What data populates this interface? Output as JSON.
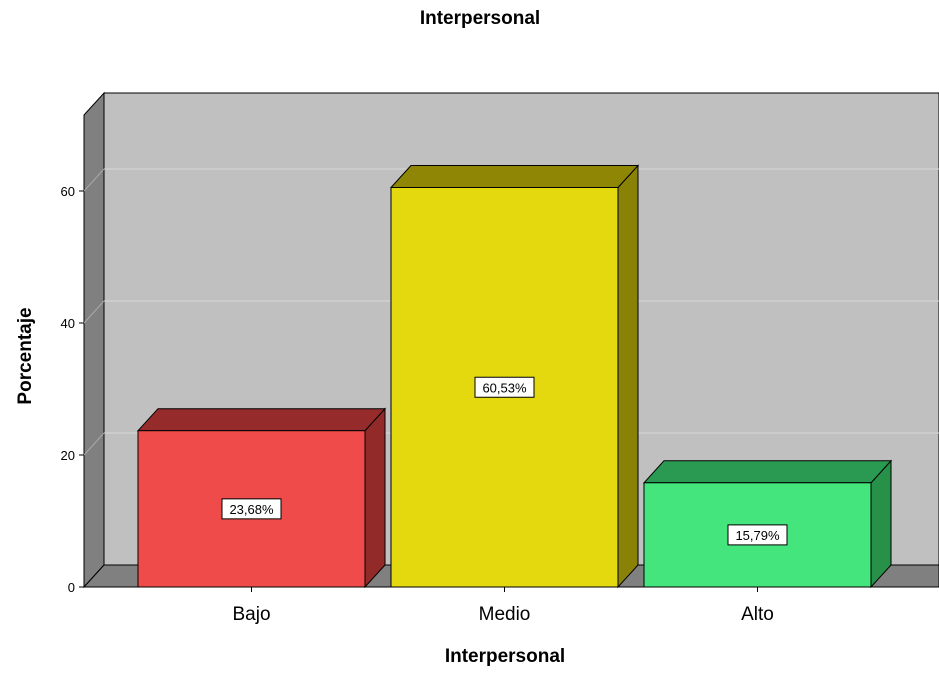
{
  "chart_data": {
    "type": "bar",
    "title": "Interpersonal",
    "xlabel": "Interpersonal",
    "ylabel": "Porcentaje",
    "categories": [
      "Bajo",
      "Medio",
      "Alto"
    ],
    "values": [
      23.68,
      60.53,
      15.79
    ],
    "data_labels": [
      "23,68%",
      "60,53%",
      "15,79%"
    ],
    "yticks": [
      0,
      20,
      40,
      60
    ],
    "ylim": [
      0,
      70
    ],
    "grid": true,
    "legend": "none",
    "colors": {
      "front": [
        "#ef4b4b",
        "#e4d80e",
        "#44e57c"
      ],
      "top": [
        "#962b2b",
        "#8f8606",
        "#2a9a52"
      ],
      "side": [
        "#922a2a",
        "#8a8206",
        "#279049"
      ],
      "plot_back": "#c0c0c0",
      "plot_wall": "#808080",
      "plot_floor": "#808080"
    }
  }
}
